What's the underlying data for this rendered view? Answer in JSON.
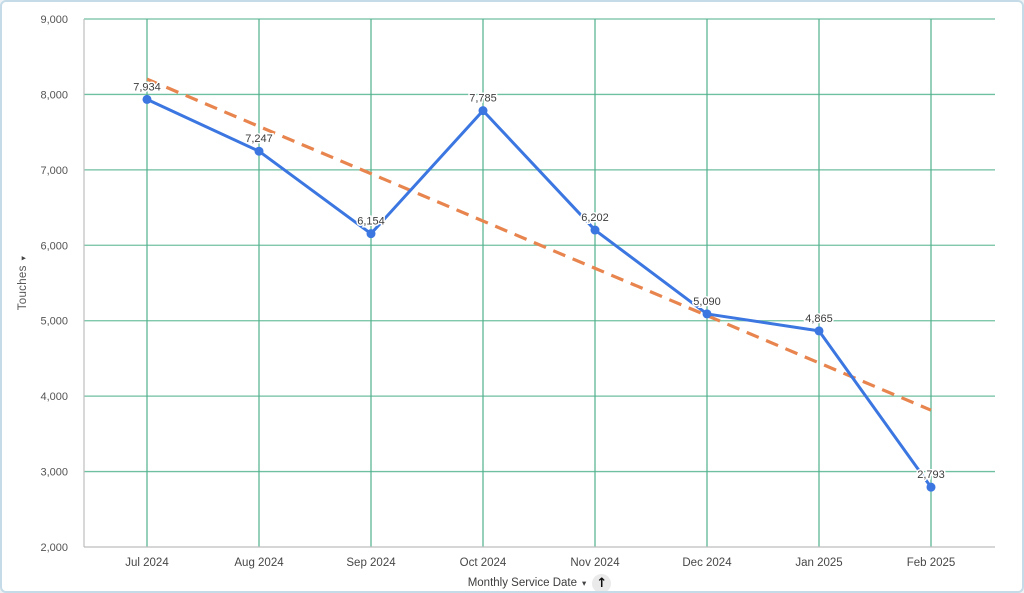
{
  "chart_data": {
    "type": "line",
    "title": "",
    "x": [
      "Jul 2024",
      "Aug 2024",
      "Sep 2024",
      "Oct 2024",
      "Nov 2024",
      "Dec 2024",
      "Jan 2025",
      "Feb 2025"
    ],
    "series": [
      {
        "name": "Touches",
        "values": [
          7934,
          7247,
          6154,
          7785,
          6202,
          5090,
          4865,
          2793
        ],
        "point_labels": [
          "7,934",
          "7,247",
          "6,154",
          "7,785",
          "6,202",
          "5,090",
          "4,865",
          "2,793"
        ],
        "color": "#3b76e1",
        "style": "solid-line-with-points"
      },
      {
        "name": "Trendline",
        "trend": true,
        "start_value": 8203,
        "end_value": 3814,
        "color": "#e8854f",
        "style": "dashed-line"
      }
    ],
    "xlabel": "Monthly Service Date",
    "ylabel": "Touches",
    "ylim": [
      2000,
      9000
    ],
    "ytick_interval": 1000,
    "ytick_labels": [
      "2,000",
      "3,000",
      "4,000",
      "5,000",
      "6,000",
      "7,000",
      "8,000",
      "9,000"
    ],
    "grid": true,
    "legend": "none"
  },
  "y_axis": {
    "label": "Touches",
    "dropdown_icon": "▾"
  },
  "x_axis": {
    "label": "Monthly Service Date",
    "dropdown_icon": "▾",
    "sort_icon": "↑"
  },
  "colors": {
    "grid": "#4cb08a",
    "axis": "#bdbdbd",
    "series": "#3b76e1",
    "trend": "#e8854f",
    "tick_text": "#545454",
    "month_text": "#474747",
    "point_label_text": "#3c3c3c",
    "frame_border": "#c5dbe7"
  }
}
